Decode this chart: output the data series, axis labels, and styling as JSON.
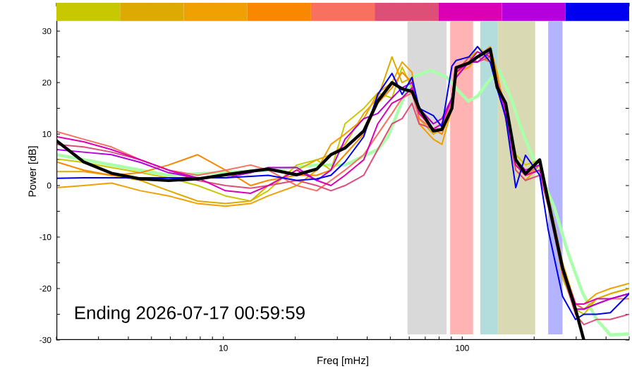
{
  "chart_data": {
    "type": "line",
    "xlabel": "Freq [mHz]",
    "ylabel": "Power [dB]",
    "annotations": [
      "Ending 2026-07-17 00:59:59"
    ],
    "log": "x",
    "xlim": [
      2,
      500
    ],
    "ylim": [
      -30,
      35.5
    ],
    "xticks": [
      {
        "value": 2,
        "label": null
      },
      {
        "value": 3,
        "label": null
      },
      {
        "value": 4,
        "label": null
      },
      {
        "value": 5,
        "label": null
      },
      {
        "value": 6,
        "label": null
      },
      {
        "value": 7,
        "label": null
      },
      {
        "value": 8,
        "label": null
      },
      {
        "value": 9,
        "label": null
      },
      10,
      {
        "value": 20,
        "label": null
      },
      {
        "value": 30,
        "label": null
      },
      {
        "value": 40,
        "label": null
      },
      {
        "value": 50,
        "label": null
      },
      {
        "value": 60,
        "label": null
      },
      {
        "value": 70,
        "label": null
      },
      {
        "value": 80,
        "label": null
      },
      {
        "value": 90,
        "label": null
      },
      100,
      {
        "value": 200,
        "label": null
      },
      {
        "value": 300,
        "label": null
      },
      {
        "value": 400,
        "label": null
      },
      {
        "value": 500,
        "label": null
      }
    ],
    "yticks": [
      -30,
      {
        "value": -25,
        "label": null
      },
      -20,
      {
        "value": -15,
        "label": null
      },
      -10,
      {
        "value": -5,
        "label": null
      },
      0,
      {
        "value": 5,
        "label": null
      },
      10,
      {
        "value": 15,
        "label": null
      },
      20,
      {
        "value": 25,
        "label": null
      },
      30
    ],
    "marker": "none",
    "line_style": "solid",
    "bands": [
      {
        "axis": "x",
        "from": 59,
        "to": 86,
        "color": "#d9d9d9"
      },
      {
        "axis": "x",
        "from": 89,
        "to": 111,
        "color": "#ffb3b3"
      },
      {
        "axis": "x",
        "from": 119,
        "to": 141,
        "color": "#b3dcdc"
      },
      {
        "axis": "x",
        "from": 141,
        "to": 202,
        "color": "#d9d9b3"
      },
      {
        "axis": "x",
        "from": 229,
        "to": 263,
        "color": "#b3b3ff"
      }
    ],
    "x": [
      2,
      2.6,
      3.4,
      4.5,
      5.9,
      7.8,
      10.2,
      13,
      15.4,
      20.3,
      24.6,
      28.2,
      32.3,
      38.7,
      44.3,
      50.8,
      56,
      61.6,
      66,
      75.7,
      82.2,
      90.5,
      94.3,
      106.7,
      115.8,
      131,
      140,
      152,
      167.5,
      184,
      211,
      229,
      263,
      298,
      323,
      365,
      417,
      500
    ],
    "series": [
      {
        "type": "line",
        "color": "#aaffaa",
        "x": [
          2,
          5.9,
          15.4,
          24.6,
          32.3,
          44.3,
          48.9,
          61.4,
          73.6,
          86.5,
          96.9,
          106,
          116,
          127.5,
          142.9,
          160,
          175.6,
          192,
          242,
          277,
          318,
          365,
          417,
          500
        ],
        "values": [
          6,
          2,
          3,
          4,
          4,
          7,
          9.5,
          21,
          22.4,
          21,
          18.3,
          16.4,
          17.4,
          20,
          22.4,
          17,
          11.4,
          6.8,
          -4,
          -13,
          -20.7,
          -26,
          -29,
          -28.8
        ]
      },
      {
        "color": "#c8c800",
        "values": [
          5.2,
          4.5,
          3.5,
          2.5,
          1.5,
          0,
          -2,
          -3,
          -1,
          4,
          5,
          3,
          12,
          15,
          18,
          17,
          23,
          19,
          15,
          12,
          13,
          16,
          23,
          24,
          27,
          25,
          20,
          15,
          6,
          4,
          5,
          -2,
          -18,
          -24,
          -25,
          -22,
          -21,
          -20
        ]
      },
      {
        "color": "#dcaa00",
        "values": [
          2.7,
          2.7,
          2,
          1,
          -1,
          -3,
          -3.5,
          -3,
          0,
          3,
          5,
          6,
          8,
          14,
          17,
          25,
          20,
          21,
          13,
          10,
          11,
          17,
          21,
          25,
          26,
          24,
          21,
          14,
          4,
          2,
          4,
          -3,
          -16,
          -24,
          -24,
          -22,
          -21,
          -20
        ]
      },
      {
        "color": "#f0a000",
        "values": [
          -0.4,
          0,
          0.5,
          -1,
          -2,
          -3.5,
          -4,
          -3.5,
          -2,
          0,
          3,
          8,
          10,
          13,
          18,
          20,
          24,
          22,
          12,
          9,
          8,
          15,
          22,
          23,
          25,
          27,
          22,
          13,
          3,
          1,
          4,
          -2,
          -15,
          -23,
          -23,
          -21,
          -20,
          -19
        ]
      },
      {
        "color": "#f88800",
        "values": [
          4.6,
          3,
          2,
          2.5,
          4,
          6,
          3,
          0,
          1,
          2,
          2,
          3,
          6,
          10,
          16,
          19,
          22,
          20,
          14,
          11,
          10,
          15,
          21,
          24,
          24,
          26,
          21,
          15,
          4,
          2,
          3,
          -3,
          -16,
          -23,
          -24,
          -23,
          -22,
          -21
        ]
      },
      {
        "color": "#f87060",
        "values": [
          10.5,
          9,
          7.5,
          5,
          3,
          2,
          3,
          4,
          3,
          0,
          -1,
          1,
          3,
          6,
          10,
          14,
          17,
          18,
          13,
          11,
          12,
          16,
          22,
          24,
          25,
          24,
          20,
          14,
          4,
          2,
          4,
          -3,
          -17,
          -23,
          -24,
          -23,
          -22,
          -22
        ]
      },
      {
        "color": "#dc5078",
        "values": [
          8,
          7.5,
          6.5,
          5,
          3,
          1,
          0,
          -0.5,
          0,
          1,
          0,
          -1,
          0,
          2,
          7,
          12,
          13,
          16,
          12,
          11,
          12,
          17,
          22,
          25,
          24,
          25,
          20,
          13,
          3,
          1,
          2,
          -4,
          -17,
          -25,
          -27,
          -26,
          -26,
          -25
        ]
      },
      {
        "color": "#dc00b4",
        "values": [
          9.5,
          8.5,
          7,
          5,
          3,
          1.5,
          -1,
          -1.5,
          0,
          3,
          1,
          0,
          2,
          5,
          12,
          16,
          17,
          19,
          14,
          11,
          12,
          17,
          22,
          24,
          26,
          25,
          19,
          14,
          4,
          2,
          3,
          -3,
          -16,
          -23,
          -23,
          -22,
          -22,
          -21
        ]
      },
      {
        "color": "#b400dc",
        "values": [
          7,
          6.5,
          6,
          4.5,
          2.5,
          1.5,
          1.5,
          2.5,
          3.5,
          3.5,
          1,
          3,
          9,
          13,
          14,
          17,
          19,
          20,
          15,
          12,
          13,
          17,
          21,
          24,
          24,
          26,
          20,
          15,
          5,
          3,
          4,
          -3,
          -16,
          -24,
          -24,
          -23,
          -22,
          -21
        ]
      },
      {
        "color": "#0000f0",
        "values": [
          1.4,
          1.5,
          1.5,
          1.5,
          1.5,
          1.5,
          1.5,
          1.8,
          2,
          1,
          1.3,
          2,
          4.6,
          9.5,
          17.7,
          21.8,
          17.7,
          21,
          15,
          13.6,
          11.4,
          23.2,
          24.3,
          25,
          27,
          24,
          18.8,
          13.3,
          -0.4,
          5.9,
          2,
          -8.6,
          -21.5,
          -26,
          -25,
          -25,
          -24.7,
          -21
        ]
      },
      {
        "type": "line",
        "color": "#000000",
        "values": [
          8.7,
          4.6,
          2.4,
          1.3,
          1,
          1.3,
          2.1,
          2.8,
          3.2,
          2.1,
          3.2,
          6,
          7.3,
          10.6,
          16.4,
          20,
          18.8,
          18.3,
          15,
          10.6,
          10.9,
          15,
          22.9,
          23.8,
          25,
          26.5,
          19.1,
          16,
          5,
          2.3,
          5,
          -3,
          -16,
          -24,
          -30,
          null,
          null,
          null
        ]
      }
    ]
  }
}
